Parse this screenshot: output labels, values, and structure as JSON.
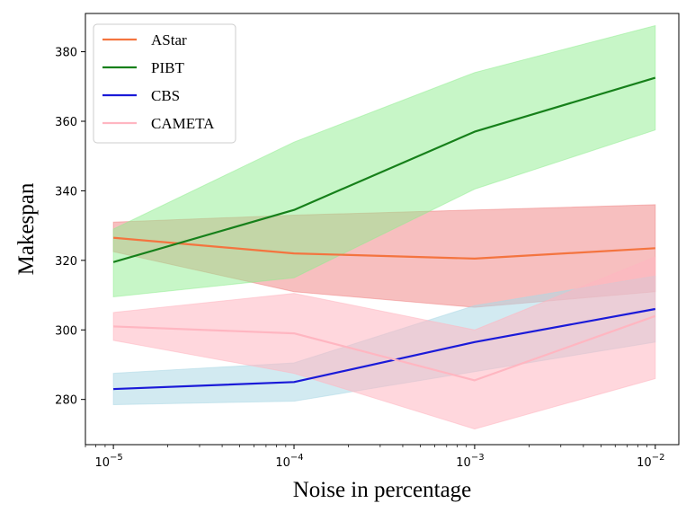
{
  "chart_data": {
    "type": "line",
    "xscale": "log",
    "xlabel": "Noise in percentage",
    "ylabel": "Makespan",
    "xlim": [
      7e-06,
      0.0135
    ],
    "ylim": [
      267,
      391
    ],
    "x": [
      1e-05,
      0.0001,
      0.001,
      0.01
    ],
    "xticks": [
      {
        "value": 1e-05,
        "base": "10",
        "exp": "−5"
      },
      {
        "value": 0.0001,
        "base": "10",
        "exp": "−4"
      },
      {
        "value": 0.001,
        "base": "10",
        "exp": "−3"
      },
      {
        "value": 0.01,
        "base": "10",
        "exp": "−2"
      }
    ],
    "yticks": [
      280,
      300,
      320,
      340,
      360,
      380
    ],
    "legend_position": "top-left",
    "series": [
      {
        "name": "AStar",
        "color": "#f4743f",
        "band_color": "#f08080",
        "band_opacity": 0.5,
        "values": [
          326.5,
          322.0,
          320.5,
          323.5
        ],
        "lower": [
          322.5,
          311.0,
          306.5,
          311.0
        ],
        "upper": [
          331.0,
          333.0,
          334.5,
          336.0
        ]
      },
      {
        "name": "PIBT",
        "color": "#16801a",
        "band_color": "#90ee90",
        "band_opacity": 0.5,
        "values": [
          319.5,
          334.5,
          357.0,
          372.5
        ],
        "lower": [
          309.5,
          315.0,
          340.5,
          357.5
        ],
        "upper": [
          329.0,
          354.0,
          374.0,
          387.5
        ]
      },
      {
        "name": "CBS",
        "color": "#1a1ad8",
        "band_color": "#add8e6",
        "band_opacity": 0.55,
        "values": [
          283.0,
          285.0,
          296.5,
          306.0
        ],
        "lower": [
          278.5,
          279.5,
          288.0,
          296.5
        ],
        "upper": [
          287.5,
          290.5,
          307.0,
          315.5
        ]
      },
      {
        "name": "CAMETA",
        "color": "#ffb6c1",
        "band_color": "#ffb6c1",
        "band_opacity": 0.55,
        "values": [
          301.0,
          299.0,
          285.5,
          304.0
        ],
        "lower": [
          297.0,
          287.5,
          271.5,
          286.0
        ],
        "upper": [
          305.0,
          310.5,
          300.0,
          321.0
        ]
      }
    ]
  }
}
